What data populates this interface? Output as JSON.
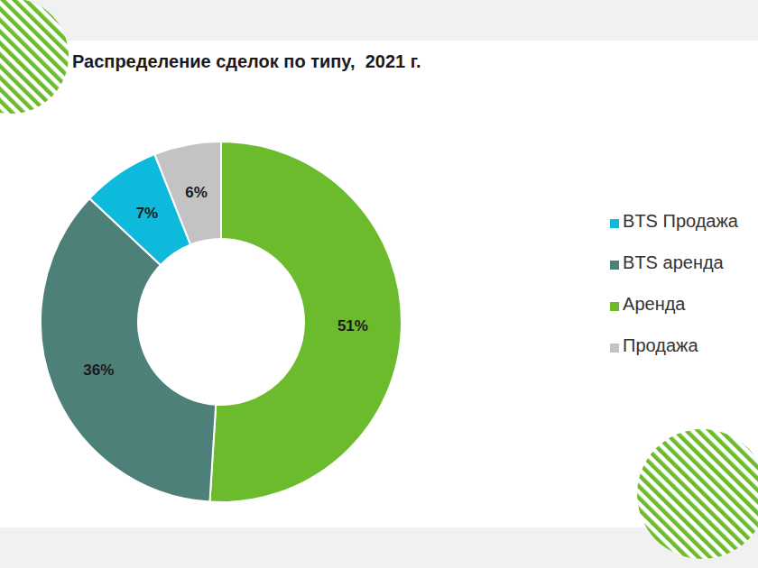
{
  "chart_data": {
    "type": "pie",
    "title": "Распределение сделок по типу,  2021 г.",
    "categories": [
      "Аренда",
      "BTS аренда",
      "BTS Продажа",
      "Продажа"
    ],
    "values": [
      51,
      36,
      7,
      6
    ],
    "value_labels": [
      "51%",
      "36%",
      "7%",
      "6%"
    ],
    "colors": [
      "#6cbb2c",
      "#4d8078",
      "#0dbadb",
      "#c3c3c3"
    ],
    "data_labels": true,
    "legend": "right"
  }
}
